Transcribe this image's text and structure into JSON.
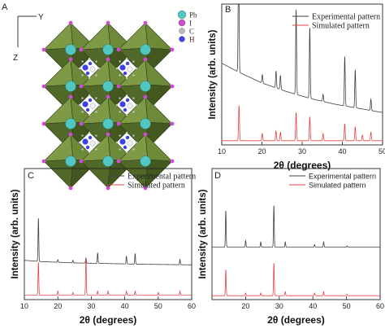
{
  "panels": {
    "A": {
      "label": "A",
      "axis_y": "Y",
      "axis_z": "Z",
      "legend": [
        "Pb",
        "I",
        "C",
        "H"
      ],
      "colors": {
        "pb": "#52c7c1",
        "i": "#d04bd6",
        "c": "#b9b9b9",
        "n": "#3d42e6",
        "octahedron": "#5f7a34"
      }
    }
  },
  "chart_data": [
    {
      "panel": "B",
      "type": "line",
      "xlabel": "2θ (degrees)",
      "ylabel": "Intensity (arb. units)",
      "xlim": [
        10,
        50
      ],
      "xticks": [
        10,
        20,
        30,
        40,
        50
      ],
      "series": [
        {
          "name": "Experimental pattern",
          "color": "#404040",
          "background": [
            [
              10,
              0.58
            ],
            [
              14,
              0.52
            ],
            [
              20,
              0.44
            ],
            [
              26,
              0.38
            ],
            [
              32,
              0.33
            ],
            [
              38,
              0.29
            ],
            [
              44,
              0.26
            ],
            [
              50,
              0.23
            ]
          ],
          "peaks": [
            [
              14.2,
              0.95
            ],
            [
              20.1,
              0.06
            ],
            [
              23.5,
              0.12
            ],
            [
              24.6,
              0.1
            ],
            [
              28.5,
              0.6
            ],
            [
              31.9,
              0.5
            ],
            [
              35.2,
              0.05
            ],
            [
              40.6,
              0.35
            ],
            [
              43.2,
              0.27
            ],
            [
              47.1,
              0.08
            ]
          ]
        },
        {
          "name": "Simulated pattern",
          "color": "#e64545",
          "background": [
            [
              10,
              0.03
            ],
            [
              50,
              0.03
            ]
          ],
          "peaks": [
            [
              14.3,
              0.25
            ],
            [
              20.1,
              0.05
            ],
            [
              23.5,
              0.07
            ],
            [
              24.6,
              0.06
            ],
            [
              28.5,
              0.2
            ],
            [
              31.9,
              0.17
            ],
            [
              35.2,
              0.05
            ],
            [
              40.6,
              0.12
            ],
            [
              43.2,
              0.1
            ],
            [
              45,
              0.04
            ],
            [
              47.1,
              0.06
            ]
          ]
        }
      ]
    },
    {
      "panel": "C",
      "type": "line",
      "xlabel": "2θ (degrees)",
      "ylabel": "Intensity (arb. units)",
      "xlim": [
        10,
        60
      ],
      "xticks": [
        10,
        20,
        30,
        40,
        50,
        60
      ],
      "series": [
        {
          "name": "Experimental pattern",
          "color": "#404040",
          "background": [
            [
              10,
              0.3
            ],
            [
              15,
              0.29
            ],
            [
              25,
              0.28
            ],
            [
              35,
              0.275
            ],
            [
              45,
              0.27
            ],
            [
              60,
              0.265
            ]
          ],
          "peaks": [
            [
              14.2,
              0.33
            ],
            [
              20,
              0.02
            ],
            [
              24.5,
              0.02
            ],
            [
              28.4,
              0.04
            ],
            [
              31.9,
              0.08
            ],
            [
              40.5,
              0.06
            ],
            [
              43.1,
              0.08
            ],
            [
              56.5,
              0.04
            ]
          ]
        },
        {
          "name": "Simulated pattern",
          "color": "#e64545",
          "background": [
            [
              10,
              0.035
            ],
            [
              60,
              0.035
            ]
          ],
          "peaks": [
            [
              14.2,
              0.25
            ],
            [
              20,
              0.03
            ],
            [
              24.5,
              0.02
            ],
            [
              28.4,
              0.28
            ],
            [
              31.9,
              0.03
            ],
            [
              35,
              0.03
            ],
            [
              40.5,
              0.03
            ],
            [
              43.1,
              0.03
            ],
            [
              50,
              0.02
            ],
            [
              56.5,
              0.03
            ]
          ]
        }
      ]
    },
    {
      "panel": "D",
      "type": "line",
      "xlabel": "2θ (degrees)",
      "ylabel": "Intensity (arb. units)",
      "xlim": [
        10,
        60
      ],
      "xticks": [
        20,
        30,
        40,
        50,
        60
      ],
      "series": [
        {
          "name": "Experimental pattern",
          "color": "#404040",
          "background": [
            [
              10,
              0.4
            ],
            [
              60,
              0.4
            ]
          ],
          "peaks": [
            [
              14.1,
              0.28
            ],
            [
              20,
              0.05
            ],
            [
              24.5,
              0.04
            ],
            [
              28.4,
              0.32
            ],
            [
              31.8,
              0.04
            ],
            [
              40.5,
              0.02
            ],
            [
              43.2,
              0.04
            ],
            [
              50.2,
              0.01
            ]
          ]
        },
        {
          "name": "Simulated pattern",
          "color": "#e64545",
          "background": [
            [
              10,
              0.03
            ],
            [
              60,
              0.03
            ]
          ],
          "peaks": [
            [
              14.1,
              0.2
            ],
            [
              20,
              0.02
            ],
            [
              24.5,
              0.02
            ],
            [
              28.4,
              0.25
            ],
            [
              31.8,
              0.03
            ],
            [
              40.5,
              0.02
            ],
            [
              43.2,
              0.03
            ],
            [
              50.2,
              0.01
            ]
          ]
        }
      ]
    }
  ]
}
